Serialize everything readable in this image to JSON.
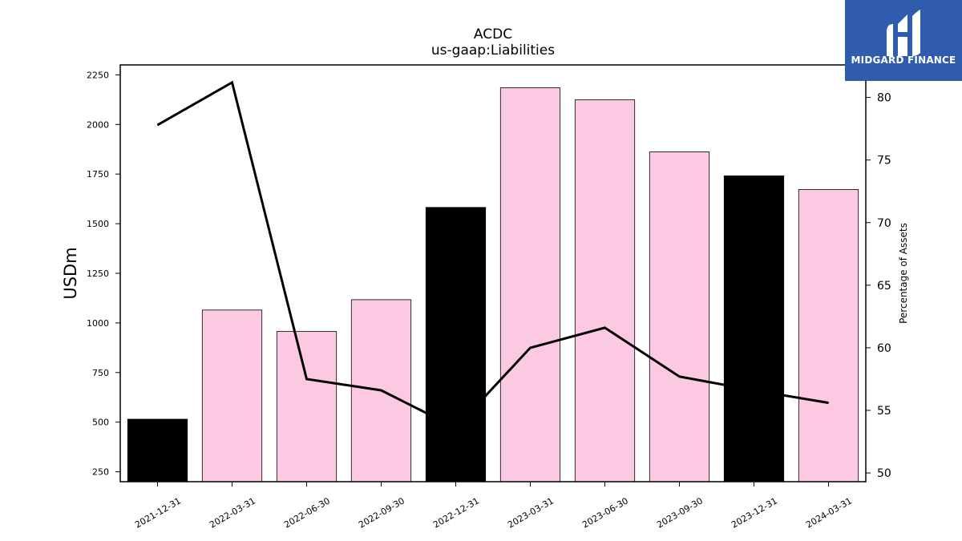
{
  "chart_data": {
    "type": "bar",
    "title": "ACDC",
    "subtitle": "us-gaap:Liabilities",
    "xlabel": "",
    "ylabel": "USDm",
    "ylabel_right": "Percentage of Assets",
    "categories": [
      "2021-12-31",
      "2022-03-31",
      "2022-06-30",
      "2022-09-30",
      "2022-12-31",
      "2023-03-31",
      "2023-06-30",
      "2023-09-30",
      "2023-12-31",
      "2024-03-31"
    ],
    "values": [
      515,
      1065,
      957,
      1117,
      1582,
      2185,
      2124,
      1862,
      1741,
      1672
    ],
    "bar_colors": [
      "#000000",
      "#fcc9e3",
      "#fcc9e3",
      "#fcc9e3",
      "#000000",
      "#fcc9e3",
      "#fcc9e3",
      "#fcc9e3",
      "#000000",
      "#fcc9e3"
    ],
    "line_series": {
      "axis": "right",
      "values": [
        77.8,
        81.2,
        57.5,
        56.6,
        53.6,
        60.0,
        61.6,
        57.7,
        56.6,
        55.6
      ],
      "color": "#000000"
    },
    "ylim": [
      200,
      2300
    ],
    "yticks": [
      250,
      500,
      750,
      1000,
      1250,
      1500,
      1750,
      2000,
      2250
    ],
    "ylim_right": [
      49.3,
      82.6
    ],
    "yticks_right": [
      50,
      55,
      60,
      65,
      70,
      75,
      80
    ],
    "grid": false
  },
  "logo": {
    "text": "MIDGARD FINANCE",
    "background": "#2f5cad"
  }
}
